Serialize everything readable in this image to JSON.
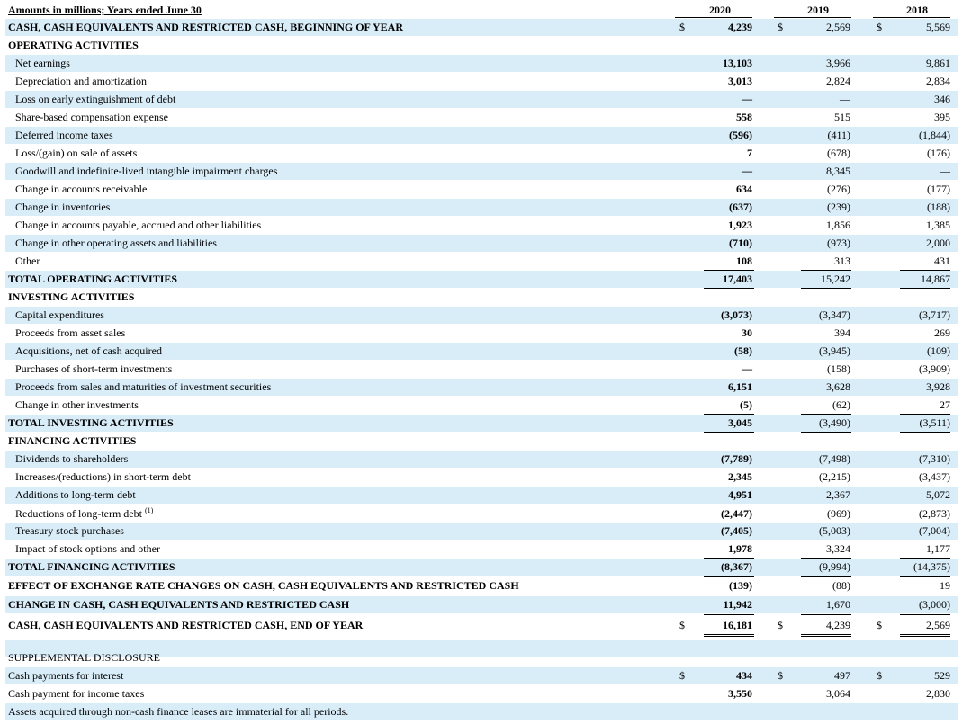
{
  "header": {
    "title": "Amounts in millions; Years ended June 30",
    "years": [
      "2020",
      "2019",
      "2018"
    ]
  },
  "currency_symbol": "$",
  "rows": [
    {
      "label": "CASH, CASH EQUIVALENTS AND RESTRICTED CASH, BEGINNING OF YEAR",
      "style": "bold",
      "shaded": true,
      "currency": true,
      "values": [
        "4,239",
        "2,569",
        "5,569"
      ]
    },
    {
      "label": "OPERATING ACTIVITIES",
      "style": "bold",
      "shaded": false,
      "values": [
        "",
        "",
        ""
      ]
    },
    {
      "label": "Net earnings",
      "style": "indent",
      "shaded": true,
      "values": [
        "13,103",
        "3,966",
        "9,861"
      ]
    },
    {
      "label": "Depreciation and amortization",
      "style": "indent",
      "shaded": false,
      "values": [
        "3,013",
        "2,824",
        "2,834"
      ]
    },
    {
      "label": "Loss on early extinguishment of debt",
      "style": "indent",
      "shaded": true,
      "values": [
        "—",
        "—",
        "346"
      ]
    },
    {
      "label": "Share-based compensation expense",
      "style": "indent",
      "shaded": false,
      "values": [
        "558",
        "515",
        "395"
      ]
    },
    {
      "label": "Deferred income taxes",
      "style": "indent",
      "shaded": true,
      "values": [
        "(596)",
        "(411)",
        "(1,844)"
      ]
    },
    {
      "label": "Loss/(gain) on sale of assets",
      "style": "indent",
      "shaded": false,
      "values": [
        "7",
        "(678)",
        "(176)"
      ]
    },
    {
      "label": "Goodwill and indefinite-lived intangible impairment charges",
      "style": "indent",
      "shaded": true,
      "values": [
        "—",
        "8,345",
        "—"
      ]
    },
    {
      "label": "Change in accounts receivable",
      "style": "indent",
      "shaded": false,
      "values": [
        "634",
        "(276)",
        "(177)"
      ]
    },
    {
      "label": "Change in inventories",
      "style": "indent",
      "shaded": true,
      "values": [
        "(637)",
        "(239)",
        "(188)"
      ]
    },
    {
      "label": "Change in accounts payable, accrued and other liabilities",
      "style": "indent",
      "shaded": false,
      "values": [
        "1,923",
        "1,856",
        "1,385"
      ]
    },
    {
      "label": "Change in other operating assets and liabilities",
      "style": "indent",
      "shaded": true,
      "values": [
        "(710)",
        "(973)",
        "2,000"
      ]
    },
    {
      "label": "Other",
      "style": "indent",
      "shaded": false,
      "values": [
        "108",
        "313",
        "431"
      ]
    },
    {
      "label": "TOTAL OPERATING ACTIVITIES",
      "style": "bold",
      "shaded": true,
      "values": [
        "17,403",
        "15,242",
        "14,867"
      ]
    },
    {
      "label": "INVESTING ACTIVITIES",
      "style": "bold",
      "shaded": false,
      "values": [
        "",
        "",
        ""
      ]
    },
    {
      "label": "Capital expenditures",
      "style": "indent",
      "shaded": true,
      "values": [
        "(3,073)",
        "(3,347)",
        "(3,717)"
      ]
    },
    {
      "label": "Proceeds from asset sales",
      "style": "indent",
      "shaded": false,
      "values": [
        "30",
        "394",
        "269"
      ]
    },
    {
      "label": "Acquisitions, net of cash acquired",
      "style": "indent",
      "shaded": true,
      "values": [
        "(58)",
        "(3,945)",
        "(109)"
      ]
    },
    {
      "label": "Purchases of short-term investments",
      "style": "indent",
      "shaded": false,
      "values": [
        "—",
        "(158)",
        "(3,909)"
      ]
    },
    {
      "label": "Proceeds from sales and maturities of investment securities",
      "style": "indent",
      "shaded": true,
      "values": [
        "6,151",
        "3,628",
        "3,928"
      ]
    },
    {
      "label": "Change in other investments",
      "style": "indent",
      "shaded": false,
      "values": [
        "(5)",
        "(62)",
        "27"
      ]
    },
    {
      "label": "TOTAL INVESTING ACTIVITIES",
      "style": "bold",
      "shaded": true,
      "values": [
        "3,045",
        "(3,490)",
        "(3,511)"
      ]
    },
    {
      "label": "FINANCING ACTIVITIES",
      "style": "bold",
      "shaded": false,
      "values": [
        "",
        "",
        ""
      ]
    },
    {
      "label": "Dividends to shareholders",
      "style": "indent",
      "shaded": true,
      "values": [
        "(7,789)",
        "(7,498)",
        "(7,310)"
      ]
    },
    {
      "label": "Increases/(reductions) in short-term debt",
      "style": "indent",
      "shaded": false,
      "values": [
        "2,345",
        "(2,215)",
        "(3,437)"
      ]
    },
    {
      "label": "Additions to long-term debt",
      "style": "indent",
      "shaded": true,
      "values": [
        "4,951",
        "2,367",
        "5,072"
      ]
    },
    {
      "label": "Reductions of long-term debt",
      "footnote": "(1)",
      "style": "indent",
      "shaded": false,
      "values": [
        "(2,447)",
        "(969)",
        "(2,873)"
      ]
    },
    {
      "label": "Treasury stock purchases",
      "style": "indent",
      "shaded": true,
      "values": [
        "(7,405)",
        "(5,003)",
        "(7,004)"
      ]
    },
    {
      "label": "Impact of stock options and other",
      "style": "indent",
      "shaded": false,
      "values": [
        "1,978",
        "3,324",
        "1,177"
      ]
    },
    {
      "label": "TOTAL FINANCING ACTIVITIES",
      "style": "bold",
      "shaded": true,
      "values": [
        "(8,367)",
        "(9,994)",
        "(14,375)"
      ]
    },
    {
      "label": "EFFECT OF EXCHANGE RATE CHANGES ON CASH, CASH EQUIVALENTS AND RESTRICTED CASH",
      "style": "bold",
      "shaded": false,
      "values": [
        "(139)",
        "(88)",
        "19"
      ]
    },
    {
      "label": "CHANGE IN CASH, CASH EQUIVALENTS AND RESTRICTED CASH",
      "style": "bold",
      "shaded": true,
      "values": [
        "11,942",
        "1,670",
        "(3,000)"
      ]
    },
    {
      "label": "CASH, CASH EQUIVALENTS AND RESTRICTED CASH, END OF YEAR",
      "style": "bold",
      "shaded": false,
      "currency": true,
      "values": [
        "16,181",
        "4,239",
        "2,569"
      ]
    },
    {
      "label": "",
      "style": "plain",
      "shaded": true,
      "values": [
        "",
        "",
        ""
      ]
    },
    {
      "label": "SUPPLEMENTAL DISCLOSURE",
      "style": "plain",
      "shaded": false,
      "values": [
        "",
        "",
        ""
      ]
    },
    {
      "label": "Cash payments for interest",
      "style": "plain",
      "shaded": true,
      "currency": true,
      "values": [
        "434",
        "497",
        "529"
      ]
    },
    {
      "label": "Cash payment for income taxes",
      "style": "plain",
      "shaded": false,
      "values": [
        "3,550",
        "3,064",
        "2,830"
      ]
    },
    {
      "label": "Assets acquired through non-cash finance leases are immaterial for all periods.",
      "style": "plain",
      "shaded": true,
      "values": [
        "",
        "",
        ""
      ]
    }
  ],
  "colors": {
    "shade": "#d9edf9",
    "text": "#000000"
  }
}
